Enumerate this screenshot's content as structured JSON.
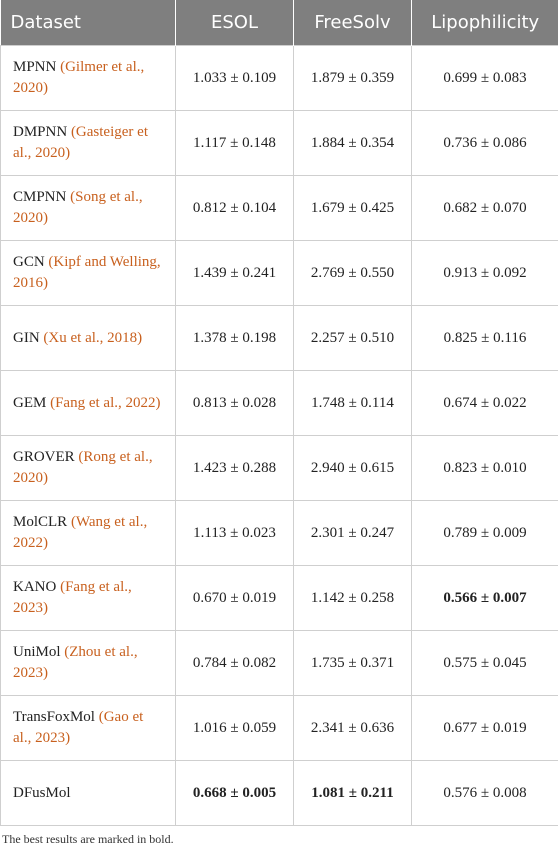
{
  "table": {
    "header": [
      "Dataset",
      "ESOL",
      "FreeSolv",
      "Lipophilicity"
    ],
    "rows": [
      {
        "name": "MPNN",
        "citation": "(Gilmer et al., 2020)",
        "values": [
          "1.033 ± 0.109",
          "1.879 ± 0.359",
          "0.699 ± 0.083"
        ],
        "bold": []
      },
      {
        "name": "DMPNN",
        "citation": "(Gasteiger et al., 2020)",
        "values": [
          "1.117 ± 0.148",
          "1.884 ± 0.354",
          "0.736 ± 0.086"
        ],
        "bold": []
      },
      {
        "name": "CMPNN",
        "citation": "(Song et al., 2020)",
        "values": [
          "0.812 ± 0.104",
          "1.679 ± 0.425",
          "0.682 ± 0.070"
        ],
        "bold": []
      },
      {
        "name": "GCN",
        "citation": "(Kipf and Welling, 2016)",
        "values": [
          "1.439 ± 0.241",
          "2.769 ± 0.550",
          "0.913 ± 0.092"
        ],
        "bold": []
      },
      {
        "name": "GIN",
        "citation": "(Xu et al., 2018)",
        "values": [
          "1.378 ± 0.198",
          "2.257 ± 0.510",
          "0.825 ± 0.116"
        ],
        "bold": []
      },
      {
        "name": "GEM",
        "citation": "(Fang et al., 2022)",
        "values": [
          "0.813 ± 0.028",
          "1.748 ± 0.114",
          "0.674 ± 0.022"
        ],
        "bold": []
      },
      {
        "name": "GROVER",
        "citation": "(Rong et al., 2020)",
        "values": [
          "1.423 ± 0.288",
          "2.940 ± 0.615",
          "0.823 ± 0.010"
        ],
        "bold": []
      },
      {
        "name": "MolCLR",
        "citation": "(Wang et al., 2022)",
        "values": [
          "1.113 ± 0.023",
          "2.301 ± 0.247",
          "0.789 ± 0.009"
        ],
        "bold": []
      },
      {
        "name": "KANO",
        "citation": "(Fang et al., 2023)",
        "values": [
          "0.670 ± 0.019",
          "1.142 ± 0.258",
          "0.566 ± 0.007"
        ],
        "bold": [
          2
        ]
      },
      {
        "name": "UniMol",
        "citation": "(Zhou et al., 2023)",
        "values": [
          "0.784 ± 0.082",
          "1.735 ± 0.371",
          "0.575 ± 0.045"
        ],
        "bold": []
      },
      {
        "name": "TransFoxMol",
        "citation": "(Gao et al., 2023)",
        "values": [
          "1.016 ± 0.059",
          "2.341 ± 0.636",
          "0.677 ± 0.019"
        ],
        "bold": []
      },
      {
        "name": "DFusMol",
        "citation": null,
        "values": [
          "0.668 ± 0.005",
          "1.081 ± 0.211",
          "0.576 ± 0.008"
        ],
        "bold": [
          0,
          1
        ]
      }
    ],
    "footnote": "The best results are marked in bold."
  }
}
